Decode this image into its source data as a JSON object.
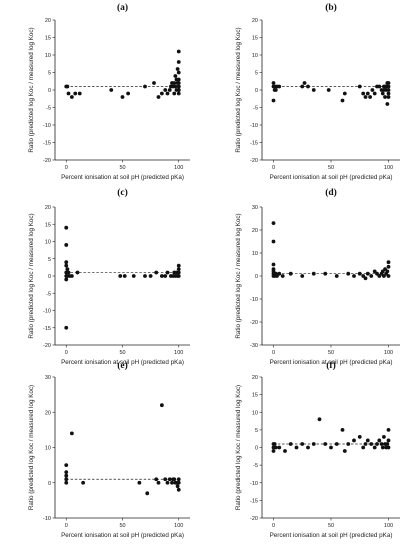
{
  "figure": {
    "panel_count": 6
  },
  "chart_data": [
    {
      "type": "scatter",
      "title": "(a)",
      "xlabel": "Percent ionisation at soil pH (predicted pKa)",
      "ylabel": "Ratio (predicted log Koc / measured log Koc)",
      "xlim": [
        -10,
        110
      ],
      "ylim": [
        -20,
        20
      ],
      "xticks": [
        "0",
        "50",
        "100"
      ],
      "yticks": [
        "-20",
        "-15",
        "-10",
        "-5",
        "0",
        "5",
        "10",
        "15",
        "20"
      ],
      "reference_line": {
        "y": 1,
        "style": "dashed"
      },
      "x": [
        0,
        1,
        2,
        5,
        8,
        12,
        40,
        50,
        55,
        70,
        78,
        82,
        85,
        88,
        90,
        92,
        93,
        94,
        95,
        96,
        96,
        97,
        97,
        98,
        98,
        99,
        99,
        100,
        100,
        100,
        100,
        100,
        100,
        100,
        100,
        100,
        100
      ],
      "y": [
        1,
        1,
        -1,
        -2,
        -1,
        -1,
        0,
        -2,
        -1,
        1,
        2,
        -2,
        -1,
        0,
        -1,
        0,
        1,
        2,
        1,
        -1,
        2,
        1,
        4,
        3,
        0,
        2,
        6,
        -1,
        0,
        1,
        2,
        3,
        5,
        8,
        11,
        1,
        0
      ]
    },
    {
      "type": "scatter",
      "title": "(b)",
      "xlabel": "Percent ionisation at soil pH (predicted pKa)",
      "ylabel": "Ratio (predicted log Koc / measured log Koc)",
      "xlim": [
        -10,
        110
      ],
      "ylim": [
        -20,
        20
      ],
      "xticks": [
        "0",
        "50",
        "100"
      ],
      "yticks": [
        "-20",
        "-15",
        "-10",
        "-5",
        "0",
        "5",
        "10",
        "15",
        "20"
      ],
      "reference_line": {
        "y": 1,
        "style": "dashed"
      },
      "x": [
        0,
        0,
        0,
        1,
        1,
        2,
        3,
        5,
        25,
        27,
        30,
        35,
        48,
        60,
        62,
        75,
        78,
        80,
        82,
        84,
        86,
        88,
        90,
        92,
        94,
        95,
        96,
        96,
        97,
        97,
        98,
        98,
        99,
        99,
        100,
        100,
        100,
        100,
        100
      ],
      "y": [
        1,
        -3,
        2,
        0,
        1,
        0,
        1,
        1,
        1,
        2,
        1,
        0,
        0,
        -3,
        -1,
        1,
        -1,
        -2,
        -1,
        -2,
        0,
        -1,
        1,
        1,
        0,
        -1,
        0,
        1,
        -2,
        1,
        0,
        1,
        -4,
        2,
        0,
        -1,
        1,
        2,
        -2
      ]
    },
    {
      "type": "scatter",
      "title": "(c)",
      "xlabel": "Percent ionisation at soil pH (predicted pKa)",
      "ylabel": "Ratio (predicted log Koc / measured log Koc)",
      "xlim": [
        -10,
        110
      ],
      "ylim": [
        -20,
        20
      ],
      "xticks": [
        "0",
        "50",
        "100"
      ],
      "yticks": [
        "-20",
        "-15",
        "-10",
        "-5",
        "0",
        "5",
        "10",
        "15",
        "20"
      ],
      "reference_line": {
        "y": 1,
        "style": "dashed"
      },
      "x": [
        0,
        0,
        0,
        0,
        0,
        0,
        0,
        0,
        1,
        1,
        2,
        3,
        5,
        10,
        48,
        52,
        60,
        70,
        75,
        80,
        85,
        88,
        90,
        93,
        95,
        96,
        97,
        98,
        99,
        100,
        100,
        100,
        100
      ],
      "y": [
        14,
        -15,
        9,
        4,
        3,
        1,
        0,
        -1,
        2,
        0,
        1,
        0,
        0,
        1,
        0,
        0,
        0,
        0,
        0,
        1,
        0,
        0,
        1,
        0,
        0,
        1,
        0,
        1,
        0,
        3,
        2,
        1,
        0
      ]
    },
    {
      "type": "scatter",
      "title": "(d)",
      "xlabel": "Percent ionisation at soil pH (predicted pKa)",
      "ylabel": "Ratio (predicted log Koc / measured log Koc)",
      "xlim": [
        -10,
        110
      ],
      "ylim": [
        -30,
        30
      ],
      "xticks": [
        "0",
        "50",
        "100"
      ],
      "yticks": [
        "-30",
        "-20",
        "-10",
        "0",
        "10",
        "20",
        "30"
      ],
      "reference_line": {
        "y": 1,
        "style": "dashed"
      },
      "x": [
        0,
        0,
        0,
        0,
        0,
        0,
        0,
        1,
        1,
        2,
        3,
        5,
        8,
        15,
        25,
        35,
        45,
        55,
        65,
        70,
        75,
        78,
        80,
        82,
        85,
        88,
        90,
        92,
        94,
        95,
        96,
        97,
        98,
        99,
        100,
        100,
        100
      ],
      "y": [
        23,
        15,
        5,
        3,
        2,
        1,
        0,
        1,
        0,
        1,
        0,
        1,
        0,
        1,
        0,
        1,
        1,
        0,
        1,
        0,
        1,
        0,
        -1,
        1,
        0,
        2,
        1,
        0,
        1,
        2,
        0,
        3,
        1,
        2,
        6,
        4,
        0
      ]
    },
    {
      "type": "scatter",
      "title": "(e)",
      "xlabel": "Percent ionisation at soil pH (predicted pKa)",
      "ylabel": "Ratio (predicted log Koc / measured log Koc)",
      "xlim": [
        -10,
        110
      ],
      "ylim": [
        -10,
        30
      ],
      "xticks": [
        "0",
        "50",
        "100"
      ],
      "yticks": [
        "-10",
        "0",
        "10",
        "20",
        "30"
      ],
      "reference_line": {
        "y": 1,
        "style": "dashed"
      },
      "x": [
        0,
        0,
        0,
        0,
        0,
        5,
        15,
        65,
        72,
        80,
        82,
        85,
        88,
        90,
        92,
        94,
        95,
        96,
        97,
        98,
        99,
        100,
        100,
        100
      ],
      "y": [
        5,
        3,
        2,
        1,
        0,
        14,
        0,
        0,
        -3,
        1,
        0,
        22,
        1,
        0,
        1,
        0,
        1,
        1,
        0,
        0,
        -1,
        1,
        -2,
        0
      ]
    },
    {
      "type": "scatter",
      "title": "(f)",
      "xlabel": "Percent ionisation at soil pH (predicted pKa)",
      "ylabel": "Ratio (predicted log Koc / measured log Koc)",
      "xlim": [
        -10,
        110
      ],
      "ylim": [
        -20,
        20
      ],
      "xticks": [
        "0",
        "50",
        "100"
      ],
      "yticks": [
        "-20",
        "-15",
        "-10",
        "-5",
        "0",
        "5",
        "10",
        "15",
        "20"
      ],
      "reference_line": {
        "y": 1,
        "style": "dashed"
      },
      "x": [
        0,
        0,
        0,
        1,
        2,
        5,
        10,
        15,
        20,
        25,
        30,
        35,
        40,
        45,
        50,
        55,
        60,
        62,
        65,
        70,
        75,
        78,
        80,
        82,
        85,
        88,
        90,
        92,
        94,
        95,
        96,
        97,
        98,
        99,
        100,
        100,
        100
      ],
      "y": [
        1,
        -1,
        0,
        1,
        0,
        0,
        -1,
        1,
        0,
        1,
        0,
        1,
        8,
        1,
        0,
        1,
        5,
        -1,
        1,
        2,
        3,
        0,
        1,
        2,
        1,
        0,
        1,
        2,
        1,
        0,
        3,
        1,
        0,
        1,
        5,
        2,
        0
      ]
    }
  ]
}
